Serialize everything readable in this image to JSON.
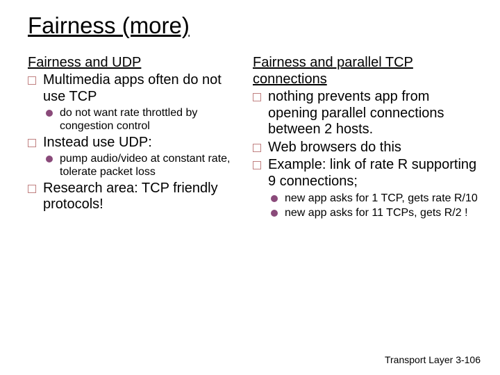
{
  "title": "Fairness (more)",
  "left": {
    "heading": "Fairness and UDP",
    "items": [
      {
        "text": "Multimedia apps often do not use TCP",
        "sub": [
          "do not want rate throttled by congestion control"
        ]
      },
      {
        "text": "Instead use UDP:",
        "sub": [
          "pump audio/video at constant rate, tolerate packet loss"
        ]
      },
      {
        "text": "Research area: TCP friendly protocols!",
        "sub": []
      }
    ]
  },
  "right": {
    "heading": "Fairness and parallel TCP connections",
    "items": [
      {
        "text": "nothing prevents app from opening parallel connections between 2 hosts.",
        "sub": []
      },
      {
        "text": "Web browsers do this",
        "sub": []
      },
      {
        "text": "Example: link of rate R supporting 9 connections;",
        "sub": [
          "new app asks for 1 TCP, gets rate R/10",
          "new app asks for 11 TCPs, gets R/2 !"
        ]
      }
    ]
  },
  "footer_label": "Transport Layer",
  "footer_page": "3-106",
  "colors": {
    "square_border": "#c08080",
    "circle_fill": "#8a4a7a"
  }
}
